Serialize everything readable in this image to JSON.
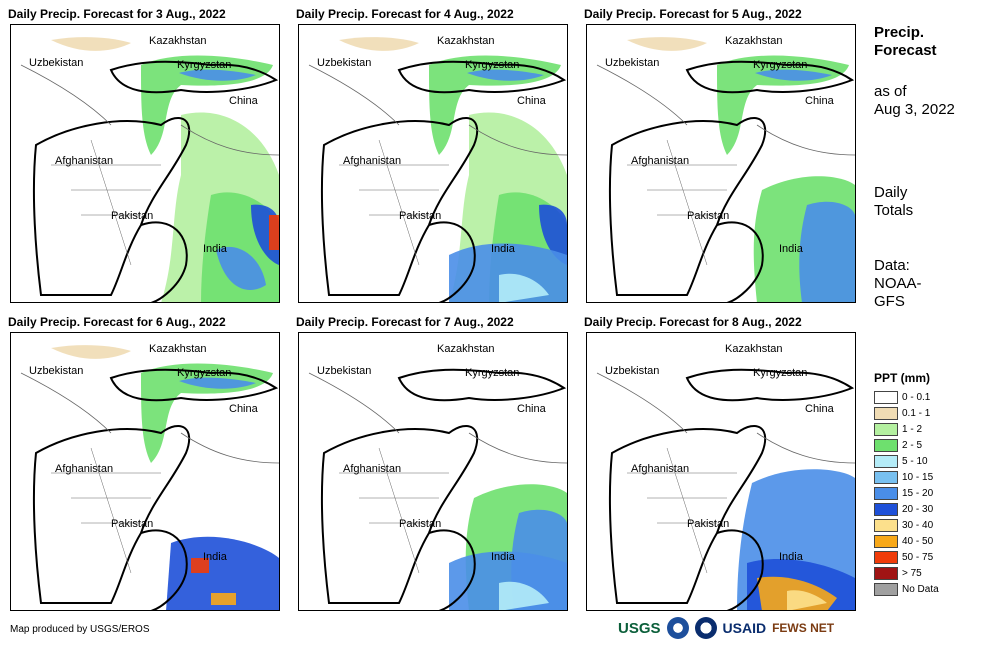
{
  "panels": [
    {
      "title": "Daily Precip. Forecast for 3 Aug., 2022",
      "blobs": [
        "wet-north",
        "wet-east",
        "wet-india-mid"
      ]
    },
    {
      "title": "Daily Precip. Forecast for 4 Aug., 2022",
      "blobs": [
        "wet-north",
        "wet-east",
        "wet-india-south"
      ]
    },
    {
      "title": "Daily Precip. Forecast for 5 Aug., 2022",
      "blobs": [
        "wet-north",
        "wet-india-east"
      ]
    },
    {
      "title": "Daily Precip. Forecast for 6 Aug., 2022",
      "blobs": [
        "wet-north",
        "wet-india-south-heavy"
      ]
    },
    {
      "title": "Daily Precip. Forecast for 7 Aug., 2022",
      "blobs": [
        "wet-india-east",
        "wet-india-south"
      ]
    },
    {
      "title": "Daily Precip. Forecast for 8 Aug., 2022",
      "blobs": [
        "wet-india-east-heavy"
      ]
    }
  ],
  "country_labels": {
    "kazakhstan": "Kazakhstan",
    "uzbekistan": "Uzbekistan",
    "kyrgyzstan": "Kyrgyzstan",
    "china": "China",
    "afghanistan": "Afghanistan",
    "pakistan": "Pakistan",
    "india": "India"
  },
  "side": {
    "title_line1": "Precip.",
    "title_line2": "Forecast",
    "asof_line1": "as of",
    "asof_line2": "Aug 3, 2022",
    "daily_line1": "Daily",
    "daily_line2": "Totals",
    "data_line1": "Data:",
    "data_line2": "NOAA-",
    "data_line3": "GFS"
  },
  "legend": {
    "title": "PPT (mm)",
    "items": [
      {
        "label": "0 - 0.1",
        "color": "#ffffff"
      },
      {
        "label": "0.1 - 1",
        "color": "#f0dcb4"
      },
      {
        "label": "1 - 2",
        "color": "#b4f0a0"
      },
      {
        "label": "2 - 5",
        "color": "#6ee06e"
      },
      {
        "label": "5 - 10",
        "color": "#b4ecf8"
      },
      {
        "label": "10 - 15",
        "color": "#78c0f0"
      },
      {
        "label": "15 - 20",
        "color": "#4a8ee8"
      },
      {
        "label": "20 - 30",
        "color": "#1e50d8"
      },
      {
        "label": "30 - 40",
        "color": "#fce08c"
      },
      {
        "label": "40 - 50",
        "color": "#f8a818"
      },
      {
        "label": "50 - 75",
        "color": "#f03c0a"
      },
      {
        "label": "> 75",
        "color": "#a01414"
      },
      {
        "label": "No Data",
        "color": "#a0a0a0"
      }
    ]
  },
  "credit": "Map produced by USGS/EROS",
  "logos": {
    "usgs": "USGS",
    "usaid": "USAID",
    "fews": "FEWS NET"
  }
}
